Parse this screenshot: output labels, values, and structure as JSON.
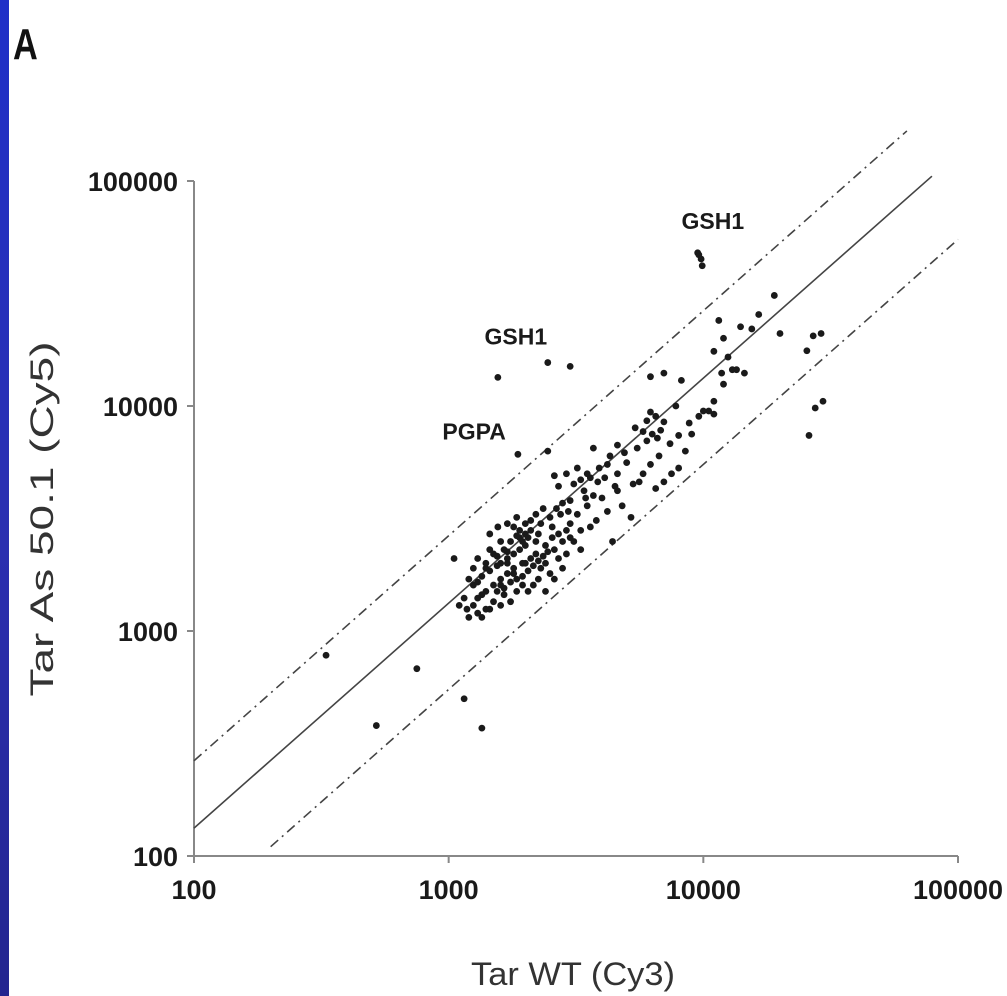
{
  "panel_label": "A",
  "chart_data": {
    "type": "scatter",
    "title": "",
    "xlabel": "Tar WT (Cy3)",
    "ylabel": "Tar As 50.1 (Cy5)",
    "x_scale": "log",
    "y_scale": "log",
    "xlim": [
      100,
      100000
    ],
    "ylim": [
      100,
      100000
    ],
    "x_ticks": [
      100,
      1000,
      10000,
      100000
    ],
    "y_ticks": [
      100,
      1000,
      10000,
      100000
    ],
    "x_tick_labels": [
      "100",
      "1000",
      "10000",
      "100000"
    ],
    "y_tick_labels": [
      "100",
      "1000",
      "10000",
      "100000"
    ],
    "grid": false,
    "colors": {
      "points": "#1a1a1a",
      "lines": "#444444",
      "axis": "#888888"
    },
    "reference_lines": [
      {
        "style": "solid",
        "ratio": 1.33,
        "x_range": [
          100,
          79000
        ]
      },
      {
        "style": "dashed",
        "ratio": 2.65,
        "x_range": [
          100,
          63000
        ]
      },
      {
        "style": "dashed",
        "ratio": 0.55,
        "x_range": [
          200,
          100000
        ]
      }
    ],
    "annotations": [
      {
        "text": "GSH1",
        "x": 9600,
        "y": 47000
      },
      {
        "text": "GSH1",
        "x": 1560,
        "y": 13400
      },
      {
        "text": "PGPA",
        "x": 1870,
        "y": 6100
      }
    ],
    "points": [
      [
        330,
        780
      ],
      [
        520,
        380
      ],
      [
        750,
        680
      ],
      [
        1150,
        500
      ],
      [
        1350,
        370
      ],
      [
        9600,
        47000
      ],
      [
        9800,
        45000
      ],
      [
        9900,
        42000
      ],
      [
        9500,
        48000
      ],
      [
        1560,
        13400
      ],
      [
        2450,
        15600
      ],
      [
        3000,
        15000
      ],
      [
        1870,
        6100
      ],
      [
        2450,
        6300
      ],
      [
        26000,
        7400
      ],
      [
        27500,
        9800
      ],
      [
        29500,
        10500
      ],
      [
        25500,
        17600
      ],
      [
        27000,
        20500
      ],
      [
        29000,
        21000
      ],
      [
        20000,
        21000
      ],
      [
        19000,
        31000
      ],
      [
        16500,
        25500
      ],
      [
        15500,
        22000
      ],
      [
        14000,
        22500
      ],
      [
        11500,
        24000
      ],
      [
        12000,
        20000
      ],
      [
        11000,
        17500
      ],
      [
        12500,
        16500
      ],
      [
        13000,
        14500
      ],
      [
        13500,
        14500
      ],
      [
        14500,
        14000
      ],
      [
        11800,
        14000
      ],
      [
        12000,
        12500
      ],
      [
        11000,
        10500
      ],
      [
        10500,
        9500
      ],
      [
        10000,
        9500
      ],
      [
        11000,
        9200
      ],
      [
        9000,
        7500
      ],
      [
        8500,
        6300
      ],
      [
        8000,
        5300
      ],
      [
        7500,
        5000
      ],
      [
        7000,
        4600
      ],
      [
        6500,
        4300
      ],
      [
        7800,
        10000
      ],
      [
        7000,
        8500
      ],
      [
        6800,
        7800
      ],
      [
        6300,
        7500
      ],
      [
        6000,
        7000
      ],
      [
        6500,
        9000
      ],
      [
        6200,
        9400
      ],
      [
        7000,
        14000
      ],
      [
        6200,
        13500
      ],
      [
        8200,
        13000
      ],
      [
        5500,
        6500
      ],
      [
        5000,
        5600
      ],
      [
        4600,
        5000
      ],
      [
        4500,
        4400
      ],
      [
        4000,
        3900
      ],
      [
        3500,
        3600
      ],
      [
        3200,
        3300
      ],
      [
        3000,
        3000
      ],
      [
        3300,
        2800
      ],
      [
        3600,
        2900
      ],
      [
        3800,
        3100
      ],
      [
        4200,
        3400
      ],
      [
        4800,
        3600
      ],
      [
        5200,
        3200
      ],
      [
        4400,
        2500
      ],
      [
        5600,
        4600
      ],
      [
        3700,
        4000
      ],
      [
        3400,
        4200
      ],
      [
        3100,
        4500
      ],
      [
        3500,
        5000
      ],
      [
        3900,
        5300
      ],
      [
        4300,
        6000
      ],
      [
        3700,
        6500
      ],
      [
        3200,
        5300
      ],
      [
        2900,
        5000
      ],
      [
        2700,
        4400
      ],
      [
        2600,
        4900
      ],
      [
        2800,
        3700
      ],
      [
        2500,
        3200
      ],
      [
        2650,
        3500
      ],
      [
        2300,
        3000
      ],
      [
        2100,
        2800
      ],
      [
        2000,
        2700
      ],
      [
        1900,
        2600
      ],
      [
        2200,
        2500
      ],
      [
        2400,
        2400
      ],
      [
        2600,
        2300
      ],
      [
        2700,
        2100
      ],
      [
        2800,
        2500
      ],
      [
        2900,
        2200
      ],
      [
        3000,
        2600
      ],
      [
        2500,
        1800
      ],
      [
        2300,
        1900
      ],
      [
        2100,
        2100
      ],
      [
        1950,
        2000
      ],
      [
        1800,
        1900
      ],
      [
        1700,
        1800
      ],
      [
        1600,
        1700
      ],
      [
        1500,
        1600
      ],
      [
        1400,
        1500
      ],
      [
        1300,
        1400
      ],
      [
        1250,
        1300
      ],
      [
        1200,
        1150
      ],
      [
        1300,
        1200
      ],
      [
        1400,
        1250
      ],
      [
        1500,
        1350
      ],
      [
        1550,
        1500
      ],
      [
        1650,
        1550
      ],
      [
        1750,
        1650
      ],
      [
        1850,
        1700
      ],
      [
        1950,
        1750
      ],
      [
        2050,
        1850
      ],
      [
        2150,
        1950
      ],
      [
        2250,
        2050
      ],
      [
        2350,
        2150
      ],
      [
        2450,
        2250
      ],
      [
        1600,
        2000
      ],
      [
        1700,
        2100
      ],
      [
        1800,
        2200
      ],
      [
        1900,
        2300
      ],
      [
        2000,
        2400
      ],
      [
        1650,
        2300
      ],
      [
        1750,
        2500
      ],
      [
        1850,
        2650
      ],
      [
        1500,
        2200
      ],
      [
        1400,
        1900
      ],
      [
        1450,
        2700
      ],
      [
        1560,
        2900
      ],
      [
        1700,
        3000
      ],
      [
        1800,
        2900
      ],
      [
        1900,
        2800
      ],
      [
        2100,
        3100
      ],
      [
        2200,
        3300
      ],
      [
        2350,
        3500
      ],
      [
        2050,
        2600
      ],
      [
        1950,
        2500
      ],
      [
        1250,
        1600
      ],
      [
        1150,
        1400
      ],
      [
        1100,
        1300
      ],
      [
        1050,
        2100
      ],
      [
        1300,
        1650
      ],
      [
        1350,
        1750
      ],
      [
        1450,
        1850
      ],
      [
        1550,
        1950
      ],
      [
        1650,
        1450
      ],
      [
        1750,
        1350
      ],
      [
        1850,
        1500
      ],
      [
        1950,
        1600
      ],
      [
        2050,
        1500
      ],
      [
        2150,
        1600
      ],
      [
        2250,
        1700
      ],
      [
        2400,
        1500
      ],
      [
        2600,
        1700
      ],
      [
        2700,
        2700
      ],
      [
        2900,
        2800
      ],
      [
        3100,
        2500
      ],
      [
        3300,
        2300
      ],
      [
        2800,
        1900
      ],
      [
        1600,
        1300
      ],
      [
        1450,
        1250
      ],
      [
        1350,
        1150
      ],
      [
        1180,
        1250
      ],
      [
        2000,
        2000
      ],
      [
        2200,
        2200
      ],
      [
        1800,
        1800
      ],
      [
        1700,
        2000
      ],
      [
        2400,
        2000
      ],
      [
        2550,
        2600
      ],
      [
        2750,
        3300
      ],
      [
        3000,
        3800
      ],
      [
        3300,
        4700
      ],
      [
        3600,
        4800
      ],
      [
        4100,
        4800
      ],
      [
        4600,
        4200
      ],
      [
        5300,
        4500
      ],
      [
        5800,
        5000
      ],
      [
        6200,
        5500
      ],
      [
        6700,
        6000
      ],
      [
        7400,
        6800
      ],
      [
        8000,
        7400
      ],
      [
        8800,
        8400
      ],
      [
        9600,
        9000
      ],
      [
        5800,
        7700
      ],
      [
        5400,
        8000
      ],
      [
        6000,
        8600
      ],
      [
        6600,
        7200
      ],
      [
        4900,
        6200
      ],
      [
        4600,
        6700
      ],
      [
        4200,
        5500
      ],
      [
        3850,
        4600
      ],
      [
        3450,
        3900
      ],
      [
        2950,
        3400
      ],
      [
        2550,
        2900
      ],
      [
        2250,
        2700
      ],
      [
        2000,
        3000
      ],
      [
        1850,
        3200
      ],
      [
        1600,
        2500
      ],
      [
        1450,
        2300
      ],
      [
        1300,
        2100
      ],
      [
        1400,
        2000
      ],
      [
        1550,
        2150
      ],
      [
        1700,
        2250
      ],
      [
        1250,
        1900
      ],
      [
        1200,
        1700
      ],
      [
        1350,
        1450
      ],
      [
        1600,
        1600
      ]
    ]
  }
}
